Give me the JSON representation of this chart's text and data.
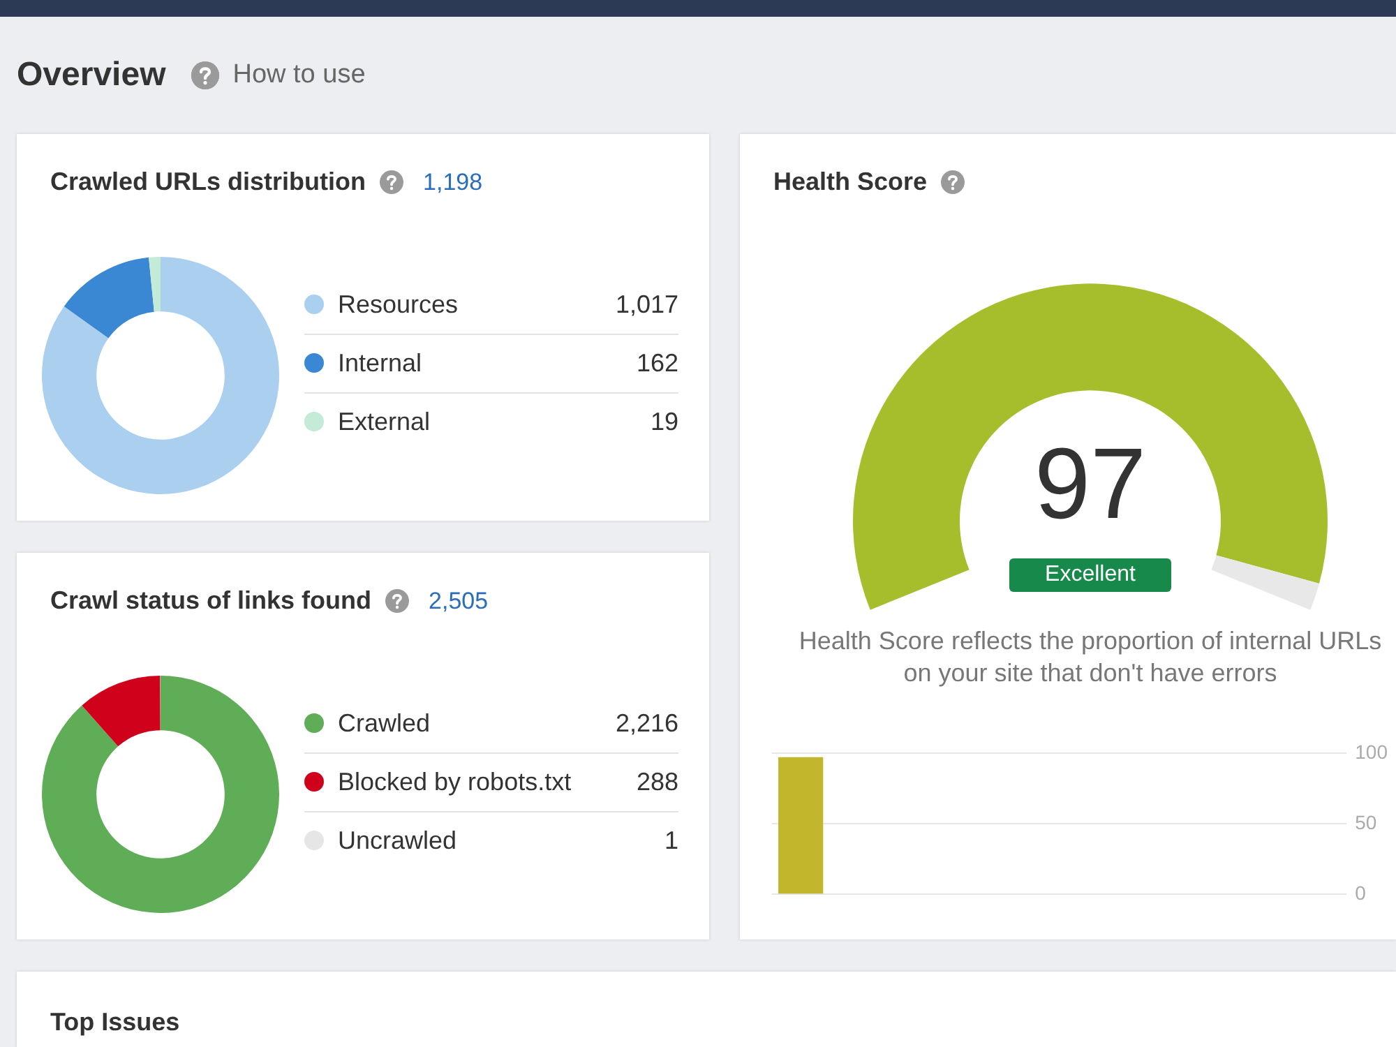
{
  "chart_data": [
    {
      "type": "other",
      "title": "Overview",
      "annotations": [
        "How to use"
      ]
    },
    {
      "type": "donut",
      "title": "Crawled URLs distribution",
      "subtitle": "1,198",
      "categories": [
        "Resources",
        "Internal",
        "External"
      ],
      "values": [
        1017,
        162,
        19
      ],
      "colors": [
        "#aacfef",
        "#3a87d4",
        "#c4ead8"
      ],
      "legend": "right",
      "value_labels": [
        "1,017",
        "162",
        "19"
      ]
    },
    {
      "type": "donut",
      "title": "Health Score",
      "categories": [
        null,
        null
      ],
      "values": [
        97,
        3
      ],
      "colors": [
        "#a6bd2c",
        "#e8e8e8"
      ],
      "annotations": [
        "97",
        "Excellent",
        "Health Score reflects the proportion of internal URLs on your site that don't have errors"
      ]
    },
    {
      "type": "donut",
      "title": "Crawl status of links found",
      "subtitle": "2,505",
      "categories": [
        "Crawled",
        "Blocked by robots.txt",
        "Uncrawled"
      ],
      "values": [
        2216,
        288,
        1
      ],
      "colors": [
        "#5fad56",
        "#d0021b",
        "#e6e6e6"
      ],
      "legend": "right",
      "value_labels": [
        "2,216",
        "288",
        "1"
      ]
    },
    {
      "type": "bar",
      "categories": [
        null,
        null,
        null,
        null,
        null,
        null,
        null,
        null,
        null,
        null
      ],
      "values": [
        97,
        0,
        0,
        0,
        0,
        0,
        0,
        0,
        0,
        0
      ],
      "colors": [
        "#c2b62c",
        "#f4a58a",
        "#f4a58a",
        "#f4a58a",
        "#f4a58a",
        "#f4a58a",
        "#f4a58a",
        "#f4a58a",
        "#f4a58a",
        "#f4a58a"
      ],
      "ylim": [
        0,
        100
      ],
      "yticks": [
        0,
        50,
        100
      ],
      "grid": "y",
      "tick_labels": "y"
    },
    {
      "type": "other",
      "title": "Top Issues"
    }
  ]
}
